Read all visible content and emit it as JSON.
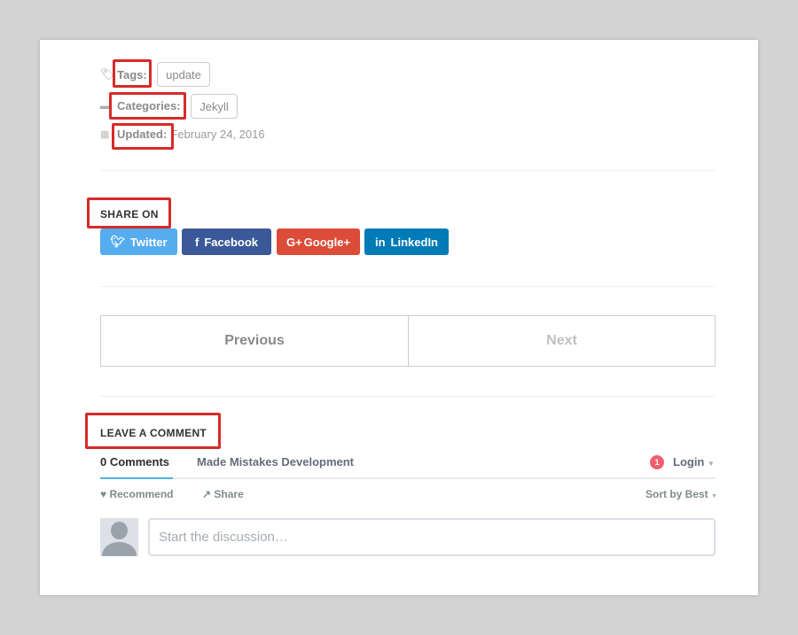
{
  "meta": {
    "tags_label": "Tags:",
    "tags": [
      "update"
    ],
    "categories_label": "Categories:",
    "categories": [
      "Jekyll"
    ],
    "updated_label": "Updated:",
    "updated_value": "February 24, 2016"
  },
  "share": {
    "heading": "SHARE ON",
    "buttons": [
      {
        "label": "Twitter",
        "icon": "twitter-icon",
        "color": "#55acee"
      },
      {
        "label": "Facebook",
        "icon": "facebook-icon",
        "color": "#3b5998"
      },
      {
        "label": "Google+",
        "icon": "google-plus-icon",
        "color": "#dd4b39"
      },
      {
        "label": "LinkedIn",
        "icon": "linkedin-icon",
        "color": "#007bb6"
      }
    ]
  },
  "pagination": {
    "previous": "Previous",
    "next": "Next"
  },
  "comments": {
    "heading": "LEAVE A COMMENT",
    "tab_comments": "0 Comments",
    "tab_community": "Made Mistakes Development",
    "notification_count": "1",
    "login": "Login",
    "recommend": "Recommend",
    "share": "Share",
    "sort": "Sort by Best",
    "placeholder": "Start the discussion…"
  },
  "colors": {
    "highlight": "#d62b2b",
    "tab_underline": "#2e9fff"
  }
}
